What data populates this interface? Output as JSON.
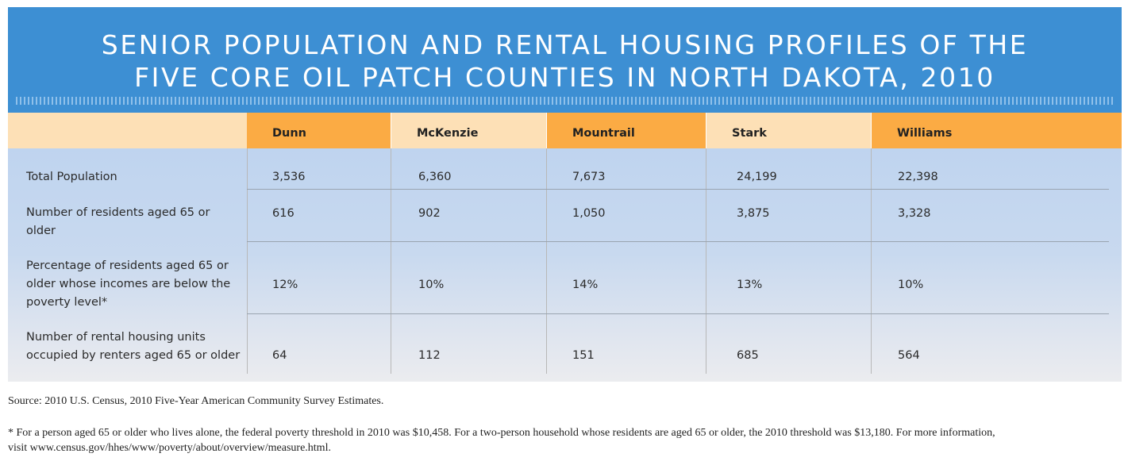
{
  "title": {
    "line1": "SENIOR POPULATION AND RENTAL HOUSING PROFILES OF THE",
    "line2": "FIVE CORE OIL PATCH COUNTIES IN NORTH DAKOTA, 2010"
  },
  "colors": {
    "header_blue": "#3d8fd3",
    "header_light_orange": "#fde0b6",
    "header_dark_orange": "#fbab44",
    "body_blue": "#bfd4ef"
  },
  "table": {
    "columns": [
      "Dunn",
      "McKenzie",
      "Mountrail",
      "Stark",
      "Williams"
    ],
    "rows": [
      {
        "label": "Total Population",
        "values": [
          "3,536",
          "6,360",
          "7,673",
          "24,199",
          "22,398"
        ]
      },
      {
        "label": "Number of residents aged 65 or older",
        "values": [
          "616",
          "902",
          "1,050",
          "3,875",
          "3,328"
        ]
      },
      {
        "label": "Percentage of residents aged 65 or older whose incomes are below the poverty level*",
        "values": [
          "12%",
          "10%",
          "14%",
          "13%",
          "10%"
        ]
      },
      {
        "label": "Number of rental housing units occupied by renters aged 65 or older",
        "values": [
          "64",
          "112",
          "151",
          "685",
          "564"
        ]
      }
    ]
  },
  "source": "Source: 2010 U.S. Census, 2010 Five-Year American Community Survey Estimates.",
  "footnote": {
    "line1": "* For a person aged 65 or older who lives alone, the federal poverty threshold in 2010 was $10,458. For a two-person household whose residents are aged 65 or older, the 2010 threshold was $13,180. For more information,",
    "line2": "visit www.census.gov/hhes/www/poverty/about/overview/measure.html."
  }
}
